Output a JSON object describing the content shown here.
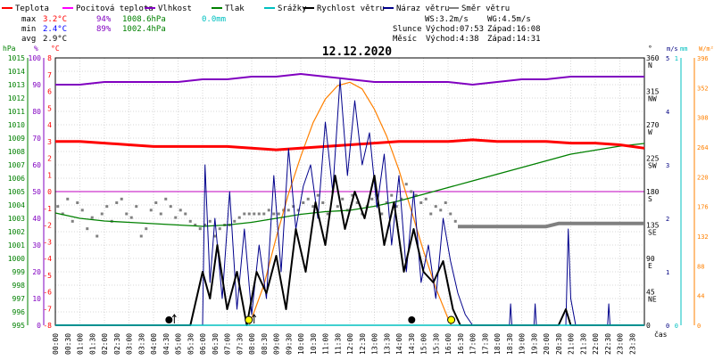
{
  "chart_data": {
    "type": "line",
    "title": "12.12.2020",
    "legend": [
      {
        "name": "Teplota",
        "color": "#ff0000"
      },
      {
        "name": "Pocitová teplota",
        "color": "#ff00ff"
      },
      {
        "name": "Vlhkost",
        "color": "#8000c0"
      },
      {
        "name": "Tlak",
        "color": "#008000"
      },
      {
        "name": "Srážky",
        "color": "#00c0c0"
      },
      {
        "name": "Rychlost větru",
        "color": "#000000"
      },
      {
        "name": "Náraz větru",
        "color": "#00008b"
      },
      {
        "name": "Směr větru",
        "color": "#808080"
      }
    ],
    "stats": {
      "max": {
        "label": "max",
        "temp": "3.2°C",
        "hum": "94%",
        "press": "1008.6hPa",
        "rain": "0.0mm"
      },
      "min": {
        "label": "min",
        "temp": "2.4°C",
        "hum": "89%",
        "press": "1002.4hPa"
      },
      "avg": {
        "label": "avg",
        "temp": "2.9°C"
      }
    },
    "wind_info": {
      "ws": "WS:3.2m/s",
      "wg": "WG:4.5m/s"
    },
    "sun": {
      "label": "Slunce",
      "rise": "Východ:07:53",
      "set": "Západ:16:08"
    },
    "moon": {
      "label": "Měsíc",
      "rise": "Východ:4:38",
      "set": "Západ:14:31"
    },
    "axis_headers": {
      "hpa": "hPa",
      "percent": "%",
      "celsius": "°C",
      "deg": "°",
      "ms": "m/s",
      "mm": "mm",
      "wm2": "W/m²"
    },
    "pressure_ticks": [
      "1015",
      "1014",
      "1013",
      "1012",
      "1011",
      "1010",
      "1009",
      "1008",
      "1007",
      "1006",
      "1005",
      "1004",
      "1003",
      "1002",
      "1001",
      "1000",
      "999",
      "998",
      "997",
      "996",
      "995"
    ],
    "humidity_ticks": [
      "100",
      "90",
      "80",
      "70",
      "60",
      "50",
      "40",
      "30",
      "20",
      "10",
      "0"
    ],
    "temp_ticks": [
      "8",
      "7",
      "6",
      "5",
      "4",
      "3",
      "2",
      "1",
      "0",
      "-1",
      "-2",
      "-3",
      "-4",
      "-5",
      "-6",
      "-7",
      "-8"
    ],
    "dir_ticks": [
      {
        "deg": "360",
        "dir": "N"
      },
      {
        "deg": "315",
        "dir": "NW"
      },
      {
        "deg": "270",
        "dir": "W"
      },
      {
        "deg": "225",
        "dir": "SW"
      },
      {
        "deg": "180",
        "dir": "S"
      },
      {
        "deg": "135",
        "dir": "SE"
      },
      {
        "deg": "90",
        "dir": "E"
      },
      {
        "deg": "45",
        "dir": "NE"
      },
      {
        "deg": "0",
        "dir": ""
      }
    ],
    "ms_ticks": [
      "5",
      "4",
      "3",
      "2",
      "1",
      "0"
    ],
    "mm_ticks": [
      "1",
      "0"
    ],
    "solar_ticks": [
      "396",
      "352",
      "308",
      "264",
      "220",
      "176",
      "132",
      "88",
      "44",
      "0"
    ],
    "x_ticks": [
      "00:00",
      "00:30",
      "01:00",
      "01:30",
      "02:00",
      "02:30",
      "03:00",
      "03:30",
      "04:00",
      "04:30",
      "05:00",
      "05:30",
      "06:00",
      "06:30",
      "07:00",
      "07:30",
      "08:00",
      "08:30",
      "09:00",
      "09:30",
      "10:00",
      "10:30",
      "11:00",
      "11:30",
      "12:00",
      "12:30",
      "13:00",
      "13:30",
      "14:00",
      "14:30",
      "15:00",
      "15:30",
      "16:00",
      "16:30",
      "17:00",
      "17:30",
      "18:00",
      "18:30",
      "19:00",
      "19:30",
      "20:00",
      "20:30",
      "21:00",
      "21:30",
      "22:00",
      "22:30",
      "23:00",
      "23:30"
    ],
    "xlabel": "čas",
    "series": {
      "temperature": {
        "x": [
          0,
          1,
          2,
          3,
          4,
          5,
          6,
          7,
          8,
          9,
          10,
          11,
          12,
          13,
          14,
          15,
          16,
          17,
          18,
          19,
          20,
          21,
          22,
          23,
          24
        ],
        "y": [
          3.0,
          3.0,
          2.9,
          2.8,
          2.7,
          2.7,
          2.7,
          2.7,
          2.6,
          2.5,
          2.6,
          2.7,
          2.8,
          2.9,
          3.0,
          3.0,
          3.0,
          3.1,
          3.0,
          3.0,
          3.0,
          2.9,
          2.9,
          2.8,
          2.6
        ]
      },
      "humidity": {
        "x": [
          0,
          1,
          2,
          3,
          4,
          5,
          6,
          7,
          8,
          9,
          10,
          11,
          12,
          13,
          14,
          15,
          16,
          17,
          18,
          19,
          20,
          21,
          22,
          23,
          24
        ],
        "y": [
          90,
          90,
          91,
          91,
          91,
          91,
          92,
          92,
          93,
          93,
          94,
          93,
          92,
          91,
          91,
          91,
          91,
          90,
          91,
          92,
          92,
          93,
          93,
          93,
          93
        ]
      },
      "pressure": {
        "x": [
          0,
          1,
          2,
          3,
          4,
          5,
          6,
          7,
          8,
          9,
          10,
          11,
          12,
          13,
          14,
          15,
          16,
          17,
          18,
          19,
          20,
          21,
          22,
          23,
          24
        ],
        "y": [
          1003.4,
          1003.0,
          1002.8,
          1002.7,
          1002.6,
          1002.5,
          1002.4,
          1002.5,
          1002.7,
          1003.0,
          1003.3,
          1003.5,
          1003.6,
          1003.9,
          1004.3,
          1004.8,
          1005.3,
          1005.8,
          1006.3,
          1006.8,
          1007.3,
          1007.8,
          1008.1,
          1008.4,
          1008.6
        ]
      },
      "solar": {
        "x": [
          7.9,
          8.5,
          9,
          9.5,
          10,
          10.5,
          11,
          11.5,
          12,
          12.5,
          13,
          13.5,
          14,
          14.5,
          15,
          15.5,
          16,
          16.13
        ],
        "y": [
          0,
          60,
          130,
          195,
          250,
          300,
          335,
          355,
          360,
          350,
          320,
          280,
          230,
          170,
          110,
          55,
          10,
          0
        ]
      },
      "wind_speed": {
        "x": [
          0,
          5.5,
          6.0,
          6.3,
          6.6,
          7.0,
          7.4,
          7.8,
          8.2,
          8.6,
          9.0,
          9.4,
          9.8,
          10.2,
          10.6,
          11.0,
          11.4,
          11.8,
          12.2,
          12.6,
          13.0,
          13.4,
          13.8,
          14.2,
          14.6,
          15.0,
          15.4,
          15.8,
          16.2,
          16.5,
          17,
          20.5,
          20.8,
          21.0,
          24
        ],
        "y": [
          0,
          0,
          1.0,
          0.5,
          1.5,
          0.3,
          1.0,
          0.0,
          1.0,
          0.6,
          1.3,
          0.3,
          1.8,
          1.0,
          2.3,
          1.5,
          2.8,
          1.8,
          2.5,
          2.0,
          2.8,
          1.5,
          2.3,
          1.0,
          1.8,
          1.0,
          0.8,
          1.2,
          0.3,
          0,
          0,
          0,
          0.3,
          0,
          0
        ]
      },
      "wind_gust": {
        "x": [
          0,
          6.0,
          6.1,
          6.3,
          6.5,
          6.8,
          7.1,
          7.4,
          7.7,
          8.0,
          8.3,
          8.6,
          8.9,
          9.2,
          9.5,
          9.8,
          10.1,
          10.4,
          10.7,
          11.0,
          11.3,
          11.6,
          11.9,
          12.2,
          12.5,
          12.8,
          13.1,
          13.4,
          13.7,
          14.0,
          14.3,
          14.6,
          14.9,
          15.2,
          15.5,
          15.8,
          16.1,
          16.4,
          16.7,
          17.0,
          18.5,
          18.55,
          18.6,
          19.5,
          19.55,
          19.6,
          20.8,
          20.9,
          21.0,
          21.2,
          22.5,
          22.55,
          22.6,
          24
        ],
        "y": [
          0,
          0,
          3.0,
          0.8,
          2.0,
          0.5,
          2.5,
          0.3,
          1.8,
          0.2,
          1.5,
          0.5,
          2.8,
          1.0,
          3.3,
          1.8,
          2.6,
          3.0,
          2.0,
          3.8,
          2.5,
          4.6,
          2.8,
          4.2,
          3.0,
          3.6,
          2.2,
          3.2,
          1.5,
          2.8,
          1.0,
          2.5,
          0.8,
          1.5,
          0.5,
          2.0,
          1.2,
          0.6,
          0.2,
          0,
          0,
          0.4,
          0,
          0,
          0.4,
          0,
          0,
          1.8,
          0.5,
          0,
          0,
          0.4,
          0,
          0
        ]
      },
      "wind_dir_x": [
        0.1,
        0.3,
        0.5,
        0.7,
        0.9,
        1.1,
        1.3,
        1.5,
        1.7,
        1.9,
        2.1,
        2.3,
        2.5,
        2.7,
        2.9,
        3.1,
        3.3,
        3.5,
        3.7,
        3.9,
        4.1,
        4.3,
        4.5,
        4.7,
        4.9,
        5.1,
        5.3,
        5.5,
        5.7,
        5.9,
        6.1,
        6.3,
        6.5,
        6.7,
        6.9,
        7.1,
        7.3,
        7.5,
        7.7,
        7.9,
        8.1,
        8.3,
        8.5,
        8.7,
        8.9,
        9.1,
        9.3,
        9.5,
        9.7,
        9.9,
        10.1,
        10.3,
        10.5,
        10.7,
        10.9,
        11.1,
        11.3,
        11.5,
        11.7,
        11.9,
        12.1,
        12.3,
        12.5,
        12.7,
        12.9,
        13.1,
        13.3,
        13.5,
        13.7,
        13.9,
        14.1,
        14.3,
        14.5,
        14.7,
        14.9,
        15.1,
        15.3,
        15.5,
        15.7,
        15.9,
        16.1,
        16.3
      ],
      "wind_dir_y": [
        160,
        150,
        170,
        140,
        165,
        155,
        130,
        145,
        120,
        150,
        160,
        140,
        165,
        170,
        150,
        145,
        160,
        120,
        130,
        155,
        165,
        150,
        170,
        160,
        145,
        155,
        150,
        140,
        135,
        130,
        135,
        140,
        120,
        130,
        135,
        135,
        140,
        145,
        150,
        150,
        150,
        150,
        150,
        155,
        150,
        150,
        155,
        155,
        160,
        155,
        165,
        170,
        160,
        175,
        165,
        150,
        180,
        160,
        170,
        155,
        175,
        165,
        150,
        160,
        170,
        175,
        150,
        165,
        175,
        160,
        170,
        190,
        180,
        175,
        165,
        170,
        150,
        160,
        155,
        165,
        150,
        140
      ],
      "wind_dir_steady": {
        "x": [
          16.4,
          18,
          20,
          20.5,
          24
        ],
        "y": [
          133,
          133,
          133,
          137,
          137
        ]
      }
    },
    "markers": [
      {
        "type": "moonrise",
        "time": 4.63
      },
      {
        "type": "sunrise",
        "time": 7.88
      },
      {
        "type": "moonset",
        "time": 14.52
      },
      {
        "type": "sunset",
        "time": 16.13
      }
    ],
    "colors": {
      "temperature": "#ff0000",
      "feels": "#ff00ff",
      "humidity": "#8000c0",
      "pressure": "#008000",
      "rain": "#00c0c0",
      "wind_speed": "#000000",
      "wind_gust": "#00008b",
      "wind_dir": "#808080",
      "solar": "#ff8000",
      "grid": "#b0b0b0",
      "zero_line": "#c000c0",
      "title": "#000000"
    }
  }
}
